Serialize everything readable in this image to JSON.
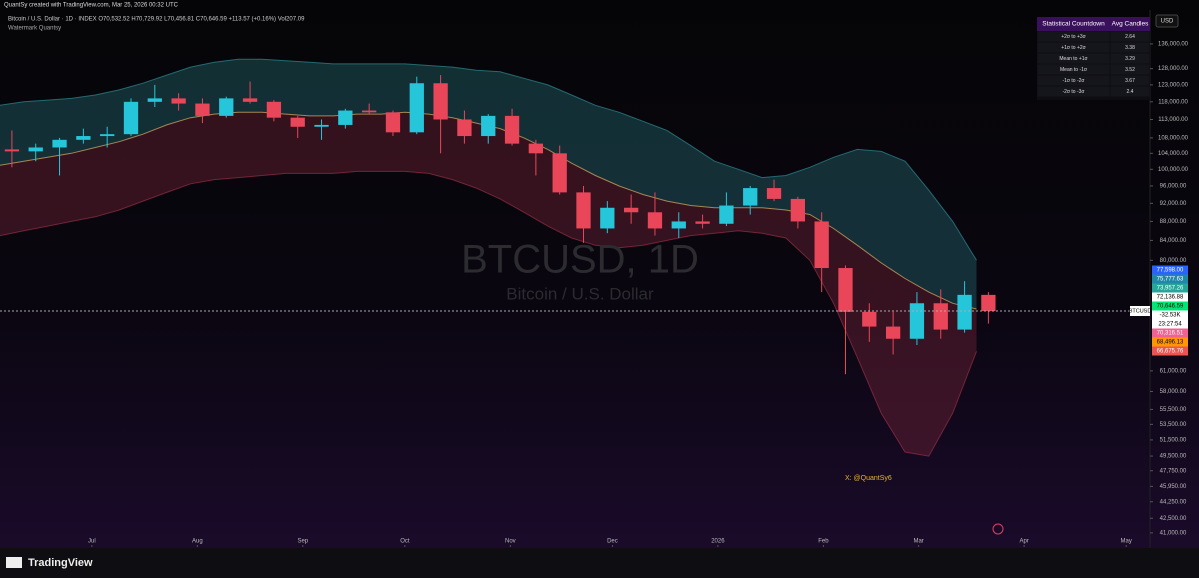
{
  "header": {
    "credit": "QuantSy created with TradingView.com, Mar 25, 2026 00:32 UTC",
    "legend": "Bitcoin / U.S. Dollar · 1D · INDEX  O70,532.52  H70,729.92  L70,456.81  C70,646.59  +113.57 (+0.16%)  Vol207.09",
    "indicator": "Watermark Quantsy"
  },
  "watermark": {
    "symbol": "BTCUSD, 1D",
    "name": "Bitcoin / U.S. Dollar"
  },
  "handle": "X: @QuantSy6",
  "currency": "USD",
  "symbol_tag": "BTCUSD",
  "footer": "TradingView",
  "table": {
    "header": [
      "Statistical Countdown",
      "Avg Candles"
    ],
    "rows": [
      [
        "+2σ to +3σ",
        2.64
      ],
      [
        "+1σ to +2σ",
        3.38
      ],
      [
        "Mean to +1σ",
        3.29
      ],
      [
        "Mean to -1σ",
        3.52
      ],
      [
        "-1σ to -2σ",
        3.67
      ],
      [
        "-2σ to -3σ",
        2.4
      ]
    ]
  },
  "price_tags": [
    {
      "label": "77,598.00",
      "bg": "#2962ff",
      "fg": "#ffffff"
    },
    {
      "label": "75,777.63",
      "bg": "#1e88a8",
      "fg": "#ffffff"
    },
    {
      "label": "73,957.26",
      "bg": "#26a69a",
      "fg": "#ffffff"
    },
    {
      "label": "72,136.88",
      "bg": "#ffffff",
      "fg": "#000000"
    },
    {
      "label": "70,646.59",
      "bg": "#00e676",
      "fg": "#000000"
    },
    {
      "label": "-32.53K",
      "bg": "#ffffff",
      "fg": "#000000"
    },
    {
      "label": "23:27:54",
      "bg": "#ffffff",
      "fg": "#000000"
    },
    {
      "label": "70,316.51",
      "bg": "#f06292",
      "fg": "#ffffff"
    },
    {
      "label": "68,496.13",
      "bg": "#ff9800",
      "fg": "#000000"
    },
    {
      "label": "66,675.76",
      "bg": "#ef5350",
      "fg": "#ffffff"
    }
  ],
  "chart_data": {
    "type": "candlestick",
    "log_scale": true,
    "grid": false,
    "up_color": "#26c6da",
    "down_color": "#e9465a",
    "x": [
      0,
      7,
      14,
      21,
      28,
      35,
      42,
      49,
      56,
      63,
      70,
      77,
      84,
      91,
      98,
      105,
      112,
      119,
      126,
      133,
      140,
      147,
      154,
      161,
      168,
      175,
      182,
      189,
      196,
      203,
      210,
      217,
      224,
      231,
      238,
      245,
      252,
      259,
      266,
      273,
      280,
      287
    ],
    "open": [
      105000,
      104500,
      105500,
      107500,
      108500,
      109000,
      118000,
      119000,
      117500,
      114000,
      119000,
      118000,
      113500,
      111000,
      111500,
      115500,
      115000,
      109500,
      123500,
      113000,
      108500,
      114000,
      106500,
      104000,
      94500,
      86500,
      91000,
      90000,
      86500,
      88000,
      87500,
      91500,
      95500,
      93000,
      88000,
      78500,
      70500,
      68000,
      66000,
      72000,
      67500,
      73500
    ],
    "high": [
      110000,
      106500,
      108000,
      110500,
      111000,
      119000,
      123000,
      120500,
      119000,
      119500,
      124000,
      118500,
      114000,
      113000,
      116000,
      117500,
      115500,
      125500,
      126000,
      115500,
      114500,
      116000,
      107500,
      106000,
      96000,
      92500,
      94000,
      94500,
      90000,
      89500,
      94500,
      96000,
      97500,
      93500,
      90000,
      79000,
      72000,
      70500,
      74000,
      74500,
      76000,
      74000
    ],
    "low": [
      100500,
      102000,
      98500,
      106500,
      105500,
      108500,
      116500,
      115500,
      112000,
      113500,
      117500,
      112500,
      108000,
      107500,
      110500,
      114500,
      108500,
      109000,
      104000,
      106500,
      106500,
      106000,
      98500,
      94000,
      83500,
      85500,
      87500,
      85000,
      84500,
      86500,
      87000,
      89500,
      92500,
      86500,
      74000,
      60500,
      65500,
      63500,
      65000,
      66000,
      67000,
      68500
    ],
    "close": [
      104500,
      105500,
      107500,
      108500,
      109000,
      118000,
      119000,
      117500,
      114000,
      119000,
      118000,
      113500,
      111000,
      111500,
      115500,
      115000,
      109500,
      123500,
      113000,
      108500,
      114000,
      106500,
      104000,
      94500,
      86500,
      91000,
      90000,
      86500,
      88000,
      87500,
      91500,
      95500,
      93000,
      88000,
      78500,
      70500,
      68000,
      66000,
      72000,
      67500,
      73500,
      70646.59
    ],
    "bands": {
      "upper_color": "#2a7d86",
      "lower_color": "#8a2a3e",
      "upper": [
        117000,
        118000,
        118500,
        119000,
        120000,
        121500,
        123500,
        126000,
        128500,
        130000,
        131000,
        131000,
        130500,
        130000,
        129500,
        129500,
        129500,
        129500,
        129000,
        128500,
        127500,
        127000,
        125000,
        123000,
        120000,
        117000,
        115000,
        112500,
        110000,
        106000,
        102000,
        100000,
        98000,
        98500,
        100500,
        103000,
        105000,
        104500,
        102000,
        95000,
        88000,
        80000
      ],
      "mean": [
        101000,
        102000,
        103000,
        104000,
        105500,
        107000,
        109000,
        111500,
        113500,
        114500,
        115000,
        115000,
        114500,
        114000,
        114000,
        114500,
        114500,
        115000,
        114500,
        113500,
        112000,
        110500,
        108000,
        105000,
        101500,
        98500,
        96000,
        94000,
        92500,
        91500,
        91000,
        91000,
        91000,
        90500,
        89500,
        86500,
        83000,
        79500,
        76500,
        74000,
        72000,
        71000
      ],
      "lower": [
        85000,
        86000,
        87000,
        88000,
        89000,
        90500,
        92500,
        94500,
        96500,
        97500,
        98000,
        98500,
        99000,
        99000,
        99000,
        99500,
        99500,
        99500,
        99000,
        97500,
        95500,
        93000,
        90000,
        87000,
        84500,
        83000,
        82500,
        83000,
        84000,
        85000,
        85500,
        86000,
        85500,
        84500,
        80000,
        72000,
        63000,
        55000,
        50000,
        49500,
        55000,
        64000
      ]
    },
    "xlim": [
      0,
      338
    ],
    "xticks": [
      {
        "value": 27,
        "label": "Jul"
      },
      {
        "value": 58,
        "label": "Aug"
      },
      {
        "value": 89,
        "label": "Sep"
      },
      {
        "value": 119,
        "label": "Oct"
      },
      {
        "value": 150,
        "label": "Nov"
      },
      {
        "value": 180,
        "label": "Dec"
      },
      {
        "value": 211,
        "label": "2026"
      },
      {
        "value": 242,
        "label": "Feb"
      },
      {
        "value": 270,
        "label": "Mar"
      },
      {
        "value": 301,
        "label": "Apr"
      },
      {
        "value": 331,
        "label": "May"
      }
    ],
    "ylim": [
      39800,
      147800
    ],
    "yticks": [
      {
        "value": 136000,
        "label": "136,000.00"
      },
      {
        "value": 128000,
        "label": "128,000.00"
      },
      {
        "value": 123000,
        "label": "123,000.00"
      },
      {
        "value": 118000,
        "label": "118,000.00"
      },
      {
        "value": 113000,
        "label": "113,000.00"
      },
      {
        "value": 108000,
        "label": "108,000.00"
      },
      {
        "value": 104000,
        "label": "104,000.00"
      },
      {
        "value": 100000,
        "label": "100,000.00"
      },
      {
        "value": 96000,
        "label": "96,000.00"
      },
      {
        "value": 92000,
        "label": "92,000.00"
      },
      {
        "value": 88000,
        "label": "88,000.00"
      },
      {
        "value": 84000,
        "label": "84,000.00"
      },
      {
        "value": 80000,
        "label": "80,000.00"
      },
      {
        "value": 61000,
        "label": "61,000.00"
      },
      {
        "value": 58000,
        "label": "58,000.00"
      },
      {
        "value": 55500,
        "label": "55,500.00"
      },
      {
        "value": 53500,
        "label": "53,500.00"
      },
      {
        "value": 51500,
        "label": "51,500.00"
      },
      {
        "value": 49500,
        "label": "49,500.00"
      },
      {
        "value": 47750,
        "label": "47,750.00"
      },
      {
        "value": 45950,
        "label": "45,950.00"
      },
      {
        "value": 44250,
        "label": "44,250.00"
      },
      {
        "value": 42500,
        "label": "42,500.00"
      },
      {
        "value": 41000,
        "label": "41,000.00"
      }
    ]
  }
}
